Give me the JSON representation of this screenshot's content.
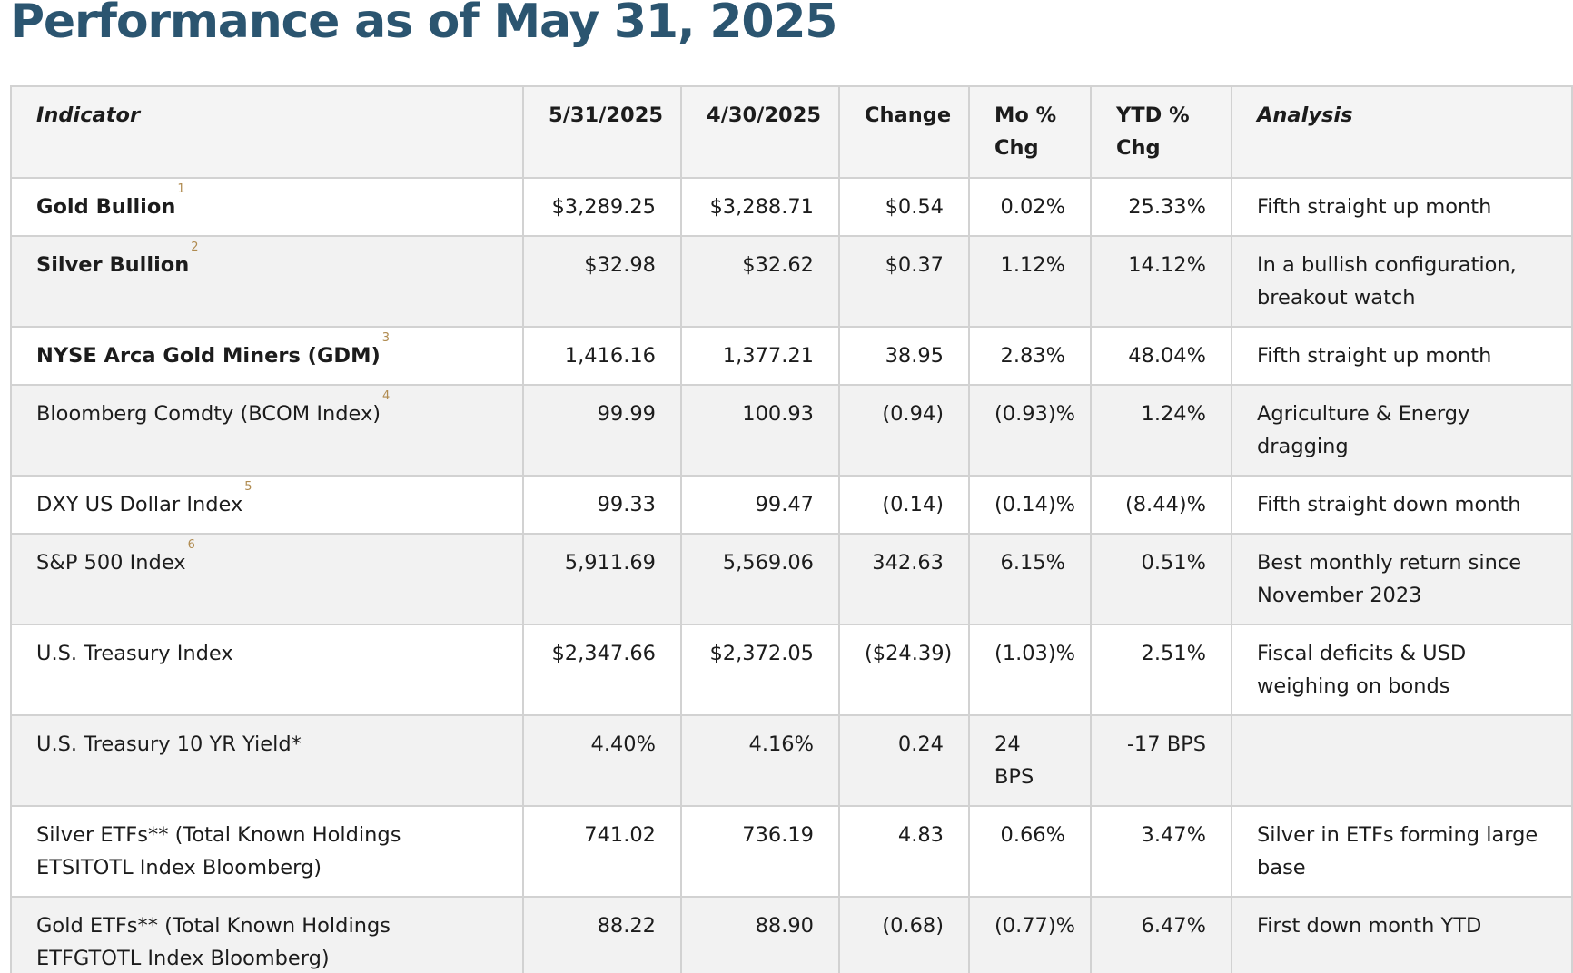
{
  "title": "Performance as of May 31, 2025",
  "table": {
    "headers": {
      "indicator": "Indicator",
      "current": "5/31/2025",
      "previous": "4/30/2025",
      "change": "Change",
      "mo_line1": "Mo %",
      "mo_line2": "Chg",
      "ytd_line1": "YTD %",
      "ytd_line2": "Chg",
      "analysis": "Analysis"
    },
    "rows": [
      {
        "indicator": "Gold Bullion",
        "fn": "1",
        "current": "$3,289.25",
        "previous": "$3,288.71",
        "change": "$0.54",
        "mo": "0.02%",
        "ytd": "25.33%",
        "analysis": "Fifth straight up month"
      },
      {
        "indicator": "Silver Bullion",
        "fn": "2",
        "current": "$32.98",
        "previous": "$32.62",
        "change": "$0.37",
        "mo": "1.12%",
        "ytd": "14.12%",
        "analysis": "In a bullish configuration, breakout watch"
      },
      {
        "indicator": "NYSE Arca Gold Miners (GDM)",
        "fn": "3",
        "current": "1,416.16",
        "previous": "1,377.21",
        "change": "38.95",
        "mo": "2.83%",
        "ytd": "48.04%",
        "analysis": "Fifth straight up month"
      },
      {
        "indicator": "Bloomberg Comdty (BCOM Index)",
        "fn": "4",
        "current": "99.99",
        "previous": "100.93",
        "change": "(0.94)",
        "mo": "(0.93)%",
        "ytd": "1.24%",
        "analysis": "Agriculture & Energy dragging"
      },
      {
        "indicator": "DXY US Dollar Index",
        "fn": "5",
        "current": "99.33",
        "previous": "99.47",
        "change": "(0.14)",
        "mo": "(0.14)%",
        "ytd": "(8.44)%",
        "analysis": "Fifth straight down month"
      },
      {
        "indicator": "S&P 500 Index",
        "fn": "6",
        "current": "5,911.69",
        "previous": "5,569.06",
        "change": "342.63",
        "mo": "6.15%",
        "ytd": "0.51%",
        "analysis": "Best monthly return since November 2023"
      },
      {
        "indicator": "U.S. Treasury Index",
        "fn": "",
        "current": "$2,347.66",
        "previous": "$2,372.05",
        "change": "($24.39)",
        "mo": "(1.03)%",
        "ytd": "2.51%",
        "analysis": "Fiscal deficits & USD weighing on bonds"
      },
      {
        "indicator": "U.S. Treasury 10 YR Yield*",
        "fn": "",
        "current": "4.40%",
        "previous": "4.16%",
        "change": "0.24",
        "mo": "24 BPS",
        "ytd": "-17 BPS",
        "analysis": ""
      },
      {
        "indicator": "Silver ETFs** (Total Known Holdings ETSITOTL Index Bloomberg)",
        "fn": "",
        "current": "741.02",
        "previous": "736.19",
        "change": "4.83",
        "mo": "0.66%",
        "ytd": "3.47%",
        "analysis": "Silver in ETFs forming large base"
      },
      {
        "indicator": "Gold ETFs** (Total Known Holdings ETFGTOTL Index Bloomberg)",
        "fn": "",
        "current": "88.22",
        "previous": "88.90",
        "change": "(0.68)",
        "mo": "(0.77)%",
        "ytd": "6.47%",
        "analysis": "First down month YTD"
      }
    ]
  }
}
